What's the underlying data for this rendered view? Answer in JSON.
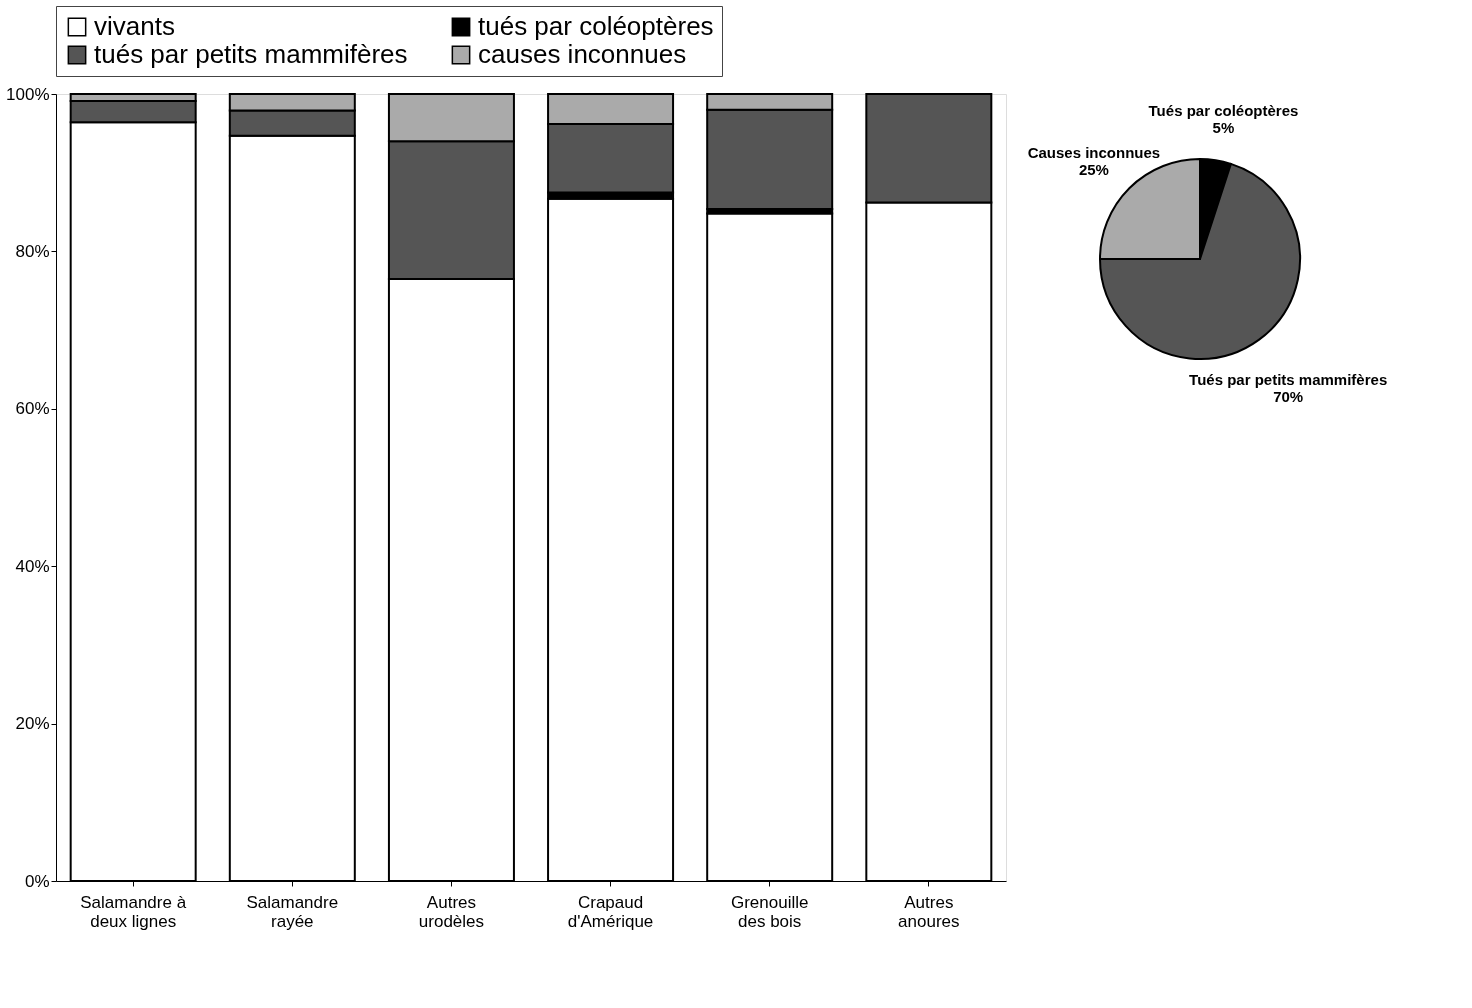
{
  "chart_data": [
    {
      "type": "bar",
      "stacked": true,
      "legend": "top",
      "categories": [
        "Salamandre à deux lignes",
        "Salamandre rayée",
        "Autres urodèles",
        "Crapaud d'Amérique",
        "Grenouille des bois",
        "Autres anoures"
      ],
      "series": [
        {
          "name": "vivants",
          "color": "#ffffff",
          "values": [
            96.4,
            94.7,
            76.5,
            86.7,
            84.8,
            86.2
          ]
        },
        {
          "name": "tués par coléoptères",
          "color": "#000000",
          "values": [
            0,
            0,
            null,
            0.8,
            0.6,
            0
          ]
        },
        {
          "name": "tués par petits mammifères",
          "color": "#555555",
          "values": [
            2.7,
            3.2,
            17.5,
            8.7,
            12.6,
            13.8
          ]
        },
        {
          "name": "causes inconnues",
          "color": "#aaaaaa",
          "values": [
            0.9,
            2.1,
            6.0,
            3.8,
            2.0,
            0
          ]
        }
      ],
      "ylim": [
        0,
        100
      ],
      "yticks": [
        {
          "value": 0,
          "label": "0%"
        },
        {
          "value": 20,
          "label": "20%"
        },
        {
          "value": 40,
          "label": "40%"
        },
        {
          "value": 60,
          "label": "60%"
        },
        {
          "value": 80,
          "label": "80%"
        },
        {
          "value": 100,
          "label": "100%"
        }
      ]
    },
    {
      "type": "pie",
      "categories": [
        "Tués par coléoptères",
        "Tués par petits mammifères",
        "Causes inconnues"
      ],
      "values": [
        5,
        70,
        25
      ],
      "value_labels": [
        "5%",
        "70%",
        "25%"
      ],
      "colors": [
        "#000000",
        "#555555",
        "#aaaaaa"
      ]
    }
  ]
}
